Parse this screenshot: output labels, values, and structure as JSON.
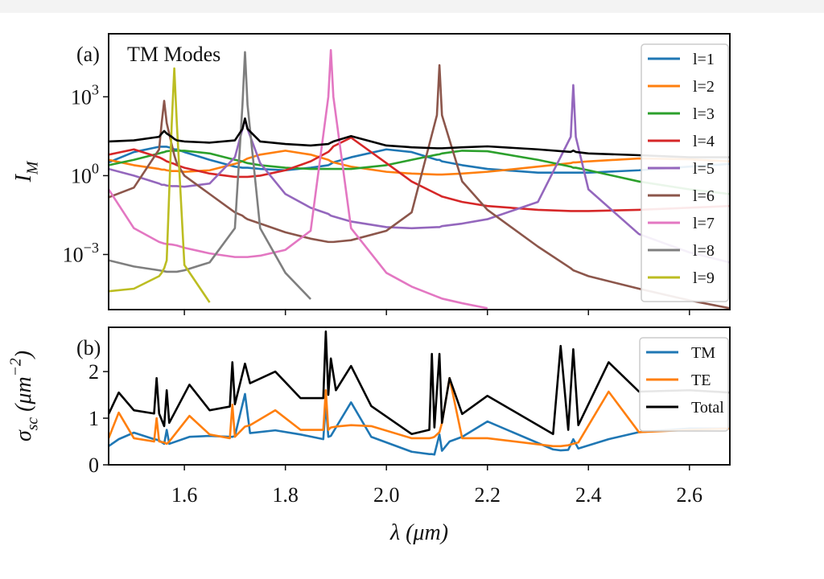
{
  "chart_data": [
    {
      "type": "line",
      "panel_label": "(a)",
      "annotation": "TM Modes",
      "ylabel": "I_{M}",
      "log_y": true,
      "xlim": [
        1.45,
        2.68
      ],
      "ylim": [
        8e-06,
        250000
      ],
      "xticks": [
        1.6,
        1.8,
        2,
        2.2,
        2.4,
        2.6
      ],
      "show_xtick_labels": false,
      "yticks": [
        {
          "value": 1000,
          "label": "10^{3}"
        },
        {
          "value": 1,
          "label": "10^{0}"
        },
        {
          "value": 0.001,
          "label": "10^{−3}"
        }
      ],
      "legend": "upper right",
      "x": [
        1.45,
        1.5,
        1.55,
        1.555,
        1.56,
        1.565,
        1.575,
        1.58,
        1.585,
        1.6,
        1.65,
        1.7,
        1.715,
        1.72,
        1.725,
        1.75,
        1.8,
        1.85,
        1.885,
        1.89,
        1.895,
        1.93,
        2.0,
        2.05,
        2.1,
        2.105,
        2.11,
        2.15,
        2.2,
        2.3,
        2.365,
        2.37,
        2.375,
        2.4,
        2.5,
        2.6,
        2.68
      ],
      "series": [
        {
          "name": "l=1",
          "color": "#1f77b4",
          "values": [
            3.2,
            7.9,
            12.6,
            12.6,
            12.6,
            12.6,
            11.2,
            10,
            10,
            7.9,
            4,
            2.2,
            2,
            2,
            2,
            1.8,
            1.6,
            2,
            2.5,
            2.8,
            3.2,
            5,
            10,
            7.9,
            4,
            4,
            3.5,
            2.5,
            1.8,
            1.3,
            1.3,
            1.3,
            1.3,
            1.3,
            1.6,
            2.2,
            2.8
          ]
        },
        {
          "name": "l=2",
          "color": "#ff7f0e",
          "values": [
            4,
            2.5,
            1.8,
            1.7,
            1.7,
            1.6,
            1.5,
            1.5,
            1.5,
            1.4,
            1.6,
            2.8,
            3.5,
            4,
            4.5,
            6.3,
            8.9,
            6.3,
            4,
            3.5,
            3.2,
            2.2,
            1.4,
            1.2,
            1.1,
            1.1,
            1.1,
            1.2,
            1.4,
            2.2,
            3,
            3.2,
            3.2,
            3.5,
            4.5,
            4.2,
            3.5
          ]
        },
        {
          "name": "l=3",
          "color": "#2ca02c",
          "values": [
            2.5,
            4,
            7,
            7.5,
            7.9,
            8.5,
            8.9,
            8.9,
            8.9,
            8.9,
            7,
            4,
            3.5,
            3.2,
            3,
            2.5,
            2,
            1.8,
            1.8,
            1.8,
            1.8,
            1.8,
            2.5,
            4,
            6.3,
            6.5,
            7,
            8.9,
            8.5,
            4,
            2.2,
            2,
            2,
            1.6,
            0.6,
            0.3,
            0.2
          ]
        },
        {
          "name": "l=4",
          "color": "#d62728",
          "values": [
            6.3,
            10,
            5,
            4.5,
            4,
            3.5,
            3,
            2.8,
            2.5,
            2,
            1.2,
            0.9,
            0.9,
            0.9,
            0.9,
            1,
            1.6,
            3.5,
            8,
            10,
            13,
            28,
            3,
            0.6,
            0.2,
            0.18,
            0.16,
            0.1,
            0.07,
            0.05,
            0.045,
            0.045,
            0.045,
            0.045,
            0.05,
            0.06,
            0.07
          ]
        },
        {
          "name": "l=5",
          "color": "#9467bd",
          "values": [
            1.8,
            1,
            0.5,
            0.45,
            0.45,
            0.42,
            0.4,
            0.4,
            0.4,
            0.38,
            0.5,
            5,
            60,
            140,
            60,
            3,
            0.2,
            0.06,
            0.035,
            0.03,
            0.028,
            0.018,
            0.011,
            0.01,
            0.011,
            0.011,
            0.012,
            0.015,
            0.022,
            0.1,
            30,
            2800,
            30,
            0.3,
            0.006,
            0.0012,
            0.0005
          ]
        },
        {
          "name": "l=6",
          "color": "#8c564b",
          "values": [
            0.15,
            0.35,
            10,
            100,
            700,
            100,
            15,
            6,
            3,
            1,
            0.2,
            0.04,
            0.03,
            0.025,
            0.022,
            0.015,
            0.007,
            0.004,
            0.003,
            0.003,
            0.003,
            0.0035,
            0.008,
            0.04,
            200,
            16000,
            200,
            0.6,
            0.05,
            0.002,
            0.0003,
            0.00025,
            0.00023,
            0.00015,
            5e-05,
            1.8e-05,
            9e-06
          ]
        },
        {
          "name": "l=7",
          "color": "#e377c2",
          "values": [
            0.3,
            0.01,
            0.003,
            0.0028,
            0.0026,
            0.0025,
            0.0024,
            0.0023,
            0.0022,
            0.0018,
            0.0011,
            0.0008,
            0.0008,
            0.0008,
            0.0008,
            0.0009,
            0.0015,
            0.008,
            1000,
            60000,
            1000,
            0.01,
            0.0002,
            6e-05,
            2.5e-05,
            2.3e-05,
            2.1e-05,
            1.4e-05,
            9e-06,
            null,
            null,
            null,
            null,
            null,
            null,
            null,
            null
          ]
        },
        {
          "name": "l=8",
          "color": "#7f7f7f",
          "values": [
            0.0006,
            0.00035,
            0.00025,
            0.00024,
            0.00023,
            0.00022,
            0.00022,
            0.00022,
            0.00022,
            0.00025,
            0.0005,
            0.01,
            500,
            50000,
            500,
            0.01,
            0.0002,
            2e-05,
            null,
            null,
            null,
            null,
            null,
            null,
            null,
            null,
            null,
            null,
            null,
            null,
            null,
            null,
            null,
            null,
            null,
            null,
            null
          ]
        },
        {
          "name": "l=9",
          "color": "#bcbd22",
          "values": [
            4e-05,
            5e-05,
            0.00015,
            0.0002,
            0.0003,
            0.0006,
            100,
            12000,
            100,
            0.0004,
            1.5e-05,
            null,
            null,
            null,
            null,
            null,
            null,
            null,
            null,
            null,
            null,
            null,
            null,
            null,
            null,
            null,
            null,
            null,
            null,
            null,
            null,
            null,
            null,
            null,
            null,
            null,
            null
          ]
        },
        {
          "color": "#000000",
          "values": [
            20,
            22,
            30,
            40,
            50,
            40,
            30,
            25,
            22,
            20,
            18,
            22,
            60,
            150,
            60,
            20,
            16,
            14,
            16,
            18,
            20,
            32,
            14,
            12,
            11,
            11,
            11,
            12,
            13,
            10,
            8,
            9,
            8,
            7,
            6,
            5,
            5
          ]
        }
      ]
    },
    {
      "type": "line",
      "panel_label": "(b)",
      "ylabel": "σ_{sc} (μm^{−2})",
      "xlabel": "λ (μm)",
      "log_y": false,
      "xlim": [
        1.45,
        2.68
      ],
      "ylim": [
        0,
        2.95
      ],
      "xticks": [
        1.6,
        1.8,
        {
          "value": 2,
          "label": "2.0"
        },
        2.2,
        2.4,
        2.6
      ],
      "yticks": [
        0,
        1,
        2
      ],
      "legend": "upper right",
      "x": [
        1.45,
        1.47,
        1.5,
        1.54,
        1.545,
        1.55,
        1.56,
        1.565,
        1.57,
        1.61,
        1.65,
        1.69,
        1.695,
        1.7,
        1.72,
        1.73,
        1.78,
        1.83,
        1.875,
        1.88,
        1.885,
        1.89,
        1.9,
        1.93,
        1.97,
        2.05,
        2.085,
        2.09,
        2.095,
        2.105,
        2.11,
        2.125,
        2.15,
        2.2,
        2.33,
        2.345,
        2.36,
        2.37,
        2.38,
        2.44,
        2.5,
        2.6,
        2.68
      ],
      "series": [
        {
          "name": "TM",
          "color": "#1f77b4",
          "values": [
            0.4,
            0.55,
            0.69,
            0.55,
            0.54,
            0.52,
            0.45,
            0.75,
            0.45,
            0.6,
            0.62,
            0.6,
            0.6,
            0.62,
            1.52,
            0.68,
            0.74,
            0.65,
            0.55,
            1.3,
            0.6,
            0.62,
            0.8,
            1.34,
            0.6,
            0.28,
            0.23,
            0.23,
            0.22,
            0.65,
            0.3,
            0.5,
            0.6,
            0.93,
            0.33,
            0.31,
            0.32,
            0.55,
            0.35,
            0.55,
            0.7,
            0.78,
            0.78
          ]
        },
        {
          "name": "TE",
          "color": "#ff7f0e",
          "values": [
            0.57,
            1.12,
            0.57,
            0.5,
            1.0,
            0.5,
            0.48,
            0.45,
            0.5,
            1.05,
            0.65,
            0.57,
            1.29,
            0.6,
            0.82,
            0.85,
            1.17,
            0.75,
            0.75,
            1.6,
            0.75,
            0.8,
            0.82,
            0.85,
            0.83,
            0.57,
            0.57,
            0.58,
            0.6,
            0.7,
            0.9,
            1.86,
            0.57,
            0.57,
            0.4,
            0.4,
            0.42,
            0.45,
            0.48,
            1.57,
            0.7,
            0.75,
            0.78
          ]
        },
        {
          "name": "Total",
          "color": "#000000",
          "values": [
            1.09,
            1.55,
            1.17,
            1.1,
            1.86,
            1.1,
            0.83,
            1.6,
            0.9,
            1.72,
            1.17,
            1.25,
            2.2,
            1.3,
            2.17,
            1.75,
            2.0,
            1.43,
            1.43,
            2.86,
            1.5,
            2.28,
            1.6,
            2.12,
            1.26,
            0.66,
            0.75,
            2.38,
            0.8,
            2.38,
            0.9,
            1.86,
            1.09,
            1.48,
            0.66,
            2.55,
            0.75,
            2.48,
            0.85,
            2.2,
            1.57,
            1.6,
            1.55
          ]
        }
      ]
    }
  ]
}
